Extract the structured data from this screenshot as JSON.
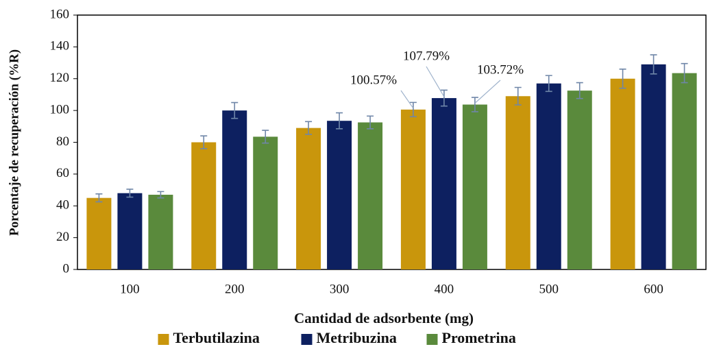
{
  "chart_data": {
    "type": "bar",
    "x_label": "Cantidad de adsorbente (mg)",
    "y_label": "Porcentaje de recuperación (%R)",
    "categories": [
      "100",
      "200",
      "300",
      "400",
      "500",
      "600"
    ],
    "series": [
      {
        "name": "Terbutilazina",
        "color": "#c9960c",
        "values": [
          45,
          80,
          89,
          100.57,
          109,
          120
        ],
        "errors": [
          2.5,
          4,
          4,
          4.5,
          5.5,
          6
        ],
        "value_labels": [
          null,
          null,
          null,
          "100.57%",
          null,
          null
        ]
      },
      {
        "name": "Metribuzina",
        "color": "#0d2060",
        "values": [
          48,
          100,
          93.5,
          107.79,
          117,
          129
        ],
        "errors": [
          2.5,
          5,
          5,
          5,
          5,
          6
        ],
        "value_labels": [
          null,
          null,
          null,
          "107.79%",
          null,
          null
        ]
      },
      {
        "name": "Prometrina",
        "color": "#5a8a3c",
        "values": [
          47,
          83.5,
          92.5,
          103.72,
          112.5,
          123.5
        ],
        "errors": [
          2,
          4,
          4,
          4.5,
          5,
          6
        ],
        "value_labels": [
          null,
          null,
          null,
          "103.72%",
          null,
          null
        ]
      }
    ],
    "ylim": [
      0,
      160
    ],
    "yticks": [
      0,
      20,
      40,
      60,
      80,
      100,
      120,
      140,
      160
    ],
    "grid": false,
    "legend": "bottom",
    "error_color": "#6f86a8"
  }
}
